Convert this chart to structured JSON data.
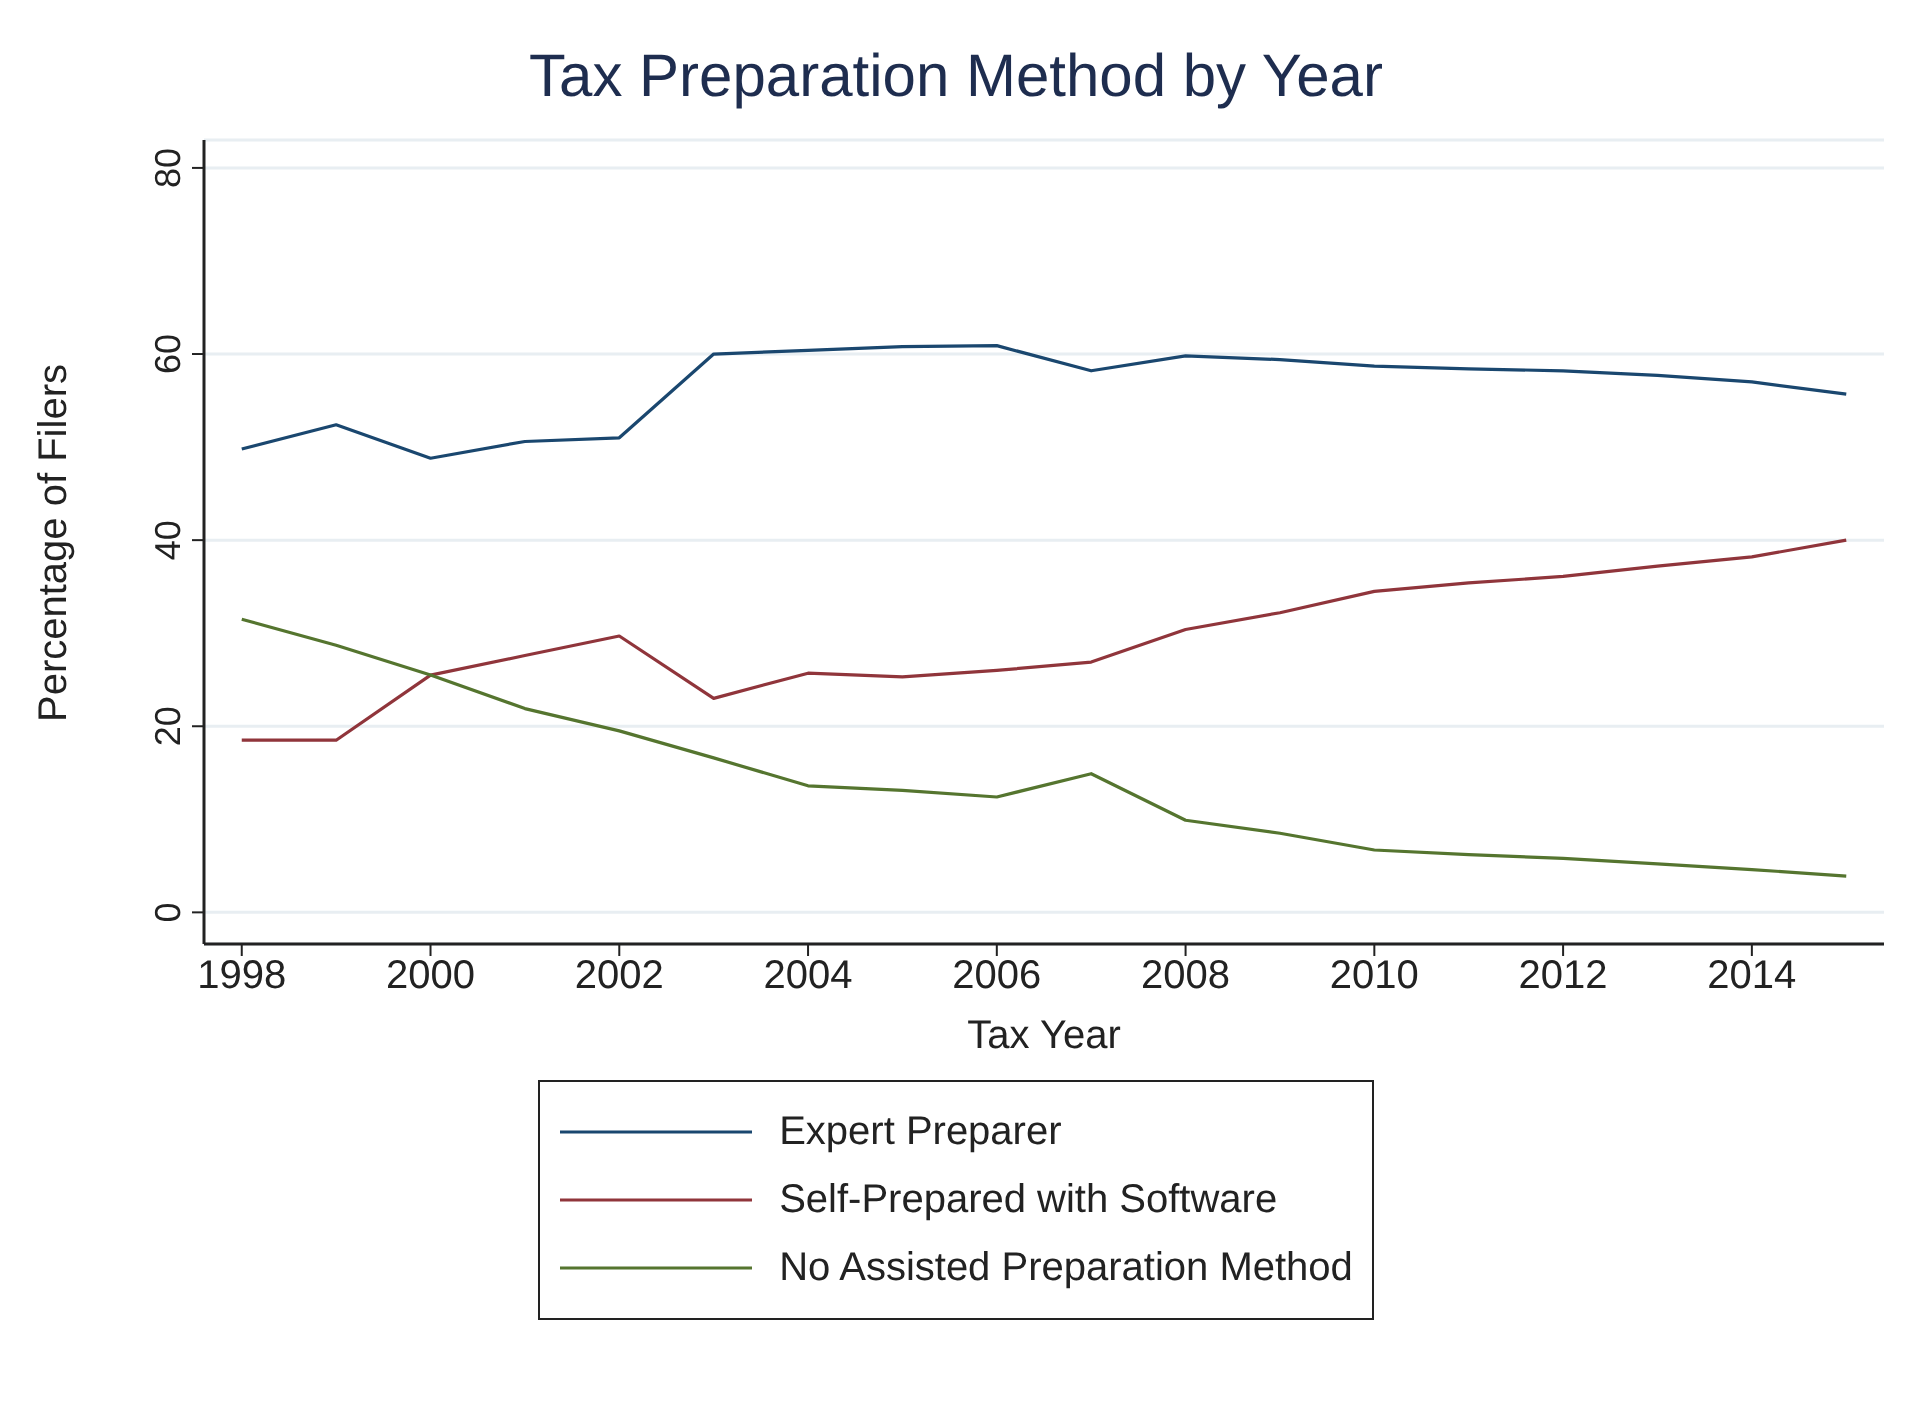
{
  "chart_data": {
    "type": "line",
    "title": "Tax Preparation Method by Year",
    "xlabel": "Tax Year",
    "ylabel": "Percentage of Filers",
    "x": [
      1998,
      1999,
      2000,
      2001,
      2002,
      2003,
      2004,
      2005,
      2006,
      2007,
      2008,
      2009,
      2010,
      2011,
      2012,
      2013,
      2014,
      2015
    ],
    "series": [
      {
        "name": "Expert Preparer",
        "color": "#1a476f",
        "values": [
          49.8,
          52.4,
          48.8,
          50.6,
          51.0,
          60.0,
          60.4,
          60.8,
          60.9,
          58.2,
          59.8,
          59.4,
          58.7,
          58.4,
          58.2,
          57.7,
          57.0,
          55.7
        ]
      },
      {
        "name": "Self-Prepared with Software",
        "color": "#90353b",
        "values": [
          18.5,
          18.5,
          25.5,
          27.6,
          29.7,
          23.0,
          25.7,
          25.3,
          26.0,
          26.9,
          30.4,
          32.2,
          34.5,
          35.4,
          36.1,
          37.2,
          38.2,
          40.0
        ]
      },
      {
        "name": "No Assisted Preparation Method",
        "color": "#55752f",
        "values": [
          31.5,
          28.7,
          25.5,
          21.9,
          19.5,
          16.6,
          13.6,
          13.1,
          12.4,
          14.9,
          9.9,
          8.5,
          6.7,
          6.2,
          5.8,
          5.2,
          4.6,
          3.9
        ]
      }
    ],
    "xlim": [
      1997.6,
      2015.4
    ],
    "xticks": [
      1998,
      2000,
      2002,
      2004,
      2006,
      2008,
      2010,
      2012,
      2014
    ],
    "ylim": [
      -3.4,
      83
    ],
    "yticks": [
      0,
      20,
      40,
      60,
      80
    ],
    "grid": "y",
    "legend": "bottom",
    "marker": "none",
    "line_style": "solid"
  }
}
